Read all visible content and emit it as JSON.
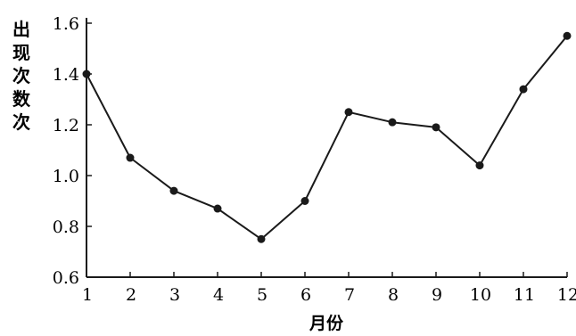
{
  "chart_data": {
    "type": "line",
    "title": "",
    "xlabel": "月份",
    "ylabel": "出现次数次",
    "x": [
      1,
      2,
      3,
      4,
      5,
      6,
      7,
      8,
      9,
      10,
      11,
      12
    ],
    "y": [
      1.4,
      1.07,
      0.94,
      0.87,
      0.75,
      0.9,
      1.25,
      1.21,
      1.19,
      1.04,
      1.34,
      1.55
    ],
    "xlim": [
      1,
      12
    ],
    "ylim": [
      0.6,
      1.6
    ],
    "xticks": [
      "1",
      "2",
      "3",
      "4",
      "5",
      "6",
      "7",
      "8",
      "9",
      "10",
      "11",
      "12"
    ],
    "yticks": [
      "0.6",
      "0.8",
      "1.0",
      "1.2",
      "1.4",
      "1.6"
    ],
    "grid": false,
    "legend": "none",
    "colors": {
      "line": "#1a1a1a",
      "marker": "#1a1a1a",
      "axis": "#1a1a1a"
    }
  }
}
